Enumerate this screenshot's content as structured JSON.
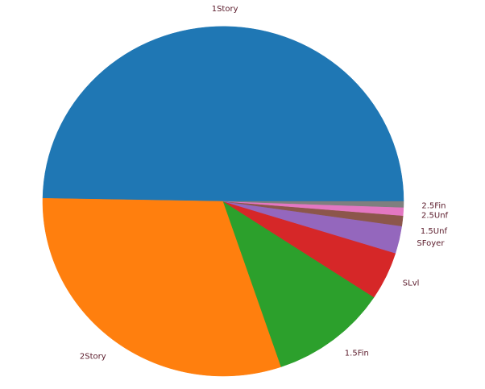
{
  "chart_data": {
    "type": "pie",
    "title": "",
    "label_color": "#5a1a2a",
    "categories": [
      "1Story",
      "2Story",
      "1.5Fin",
      "SLvl",
      "SFoyer",
      "1.5Unf",
      "2.5Unf",
      "2.5Fin"
    ],
    "values": [
      726,
      445,
      154,
      65,
      37,
      14,
      11,
      8
    ],
    "colors": [
      "#1f77b4",
      "#ff7f0e",
      "#2ca02c",
      "#d62728",
      "#9467bd",
      "#8c564b",
      "#e377c2",
      "#7f7f7f"
    ],
    "legend": false,
    "start_angle_deg": 0,
    "direction": "counterclockwise"
  }
}
